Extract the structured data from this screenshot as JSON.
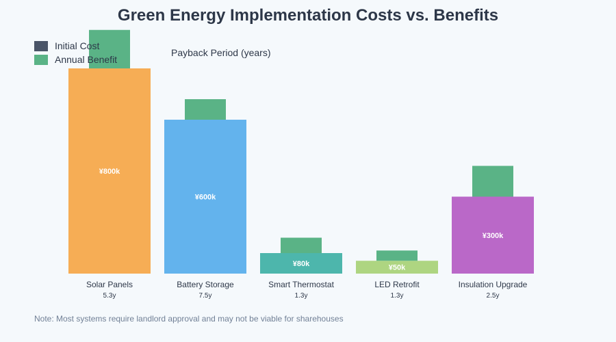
{
  "chart_data": {
    "type": "bar",
    "title": "Green Energy Implementation Costs vs. Benefits",
    "subtitle_label": "Payback Period (years)",
    "categories": [
      "Solar Panels",
      "Battery Storage",
      "Smart Thermostat",
      "LED Retrofit",
      "Insulation Upgrade"
    ],
    "series": [
      {
        "name": "Initial Cost",
        "values": [
          800,
          600,
          80,
          50,
          300
        ],
        "unit": "k¥"
      },
      {
        "name": "Annual Benefit",
        "values": [
          150,
          80,
          60,
          40,
          120
        ],
        "unit": "k¥"
      }
    ],
    "value_labels": [
      "¥800k",
      "¥600k",
      "¥80k",
      "¥50k",
      "¥300k"
    ],
    "payback_labels": [
      "5.3y",
      "7.5y",
      "1.3y",
      "1.3y",
      "2.5y"
    ],
    "bar_colors": [
      "#f6ad55",
      "#63b3ed",
      "#4db6ac",
      "#aed581",
      "#ba68c8"
    ],
    "benefit_color": "#5ab386",
    "legend_cost_color": "#4a5568",
    "legend_placement": "top-left",
    "ylim": [
      0,
      800
    ],
    "grid": false,
    "note": "Note: Most systems require landlord approval and may not be viable for sharehouses"
  }
}
